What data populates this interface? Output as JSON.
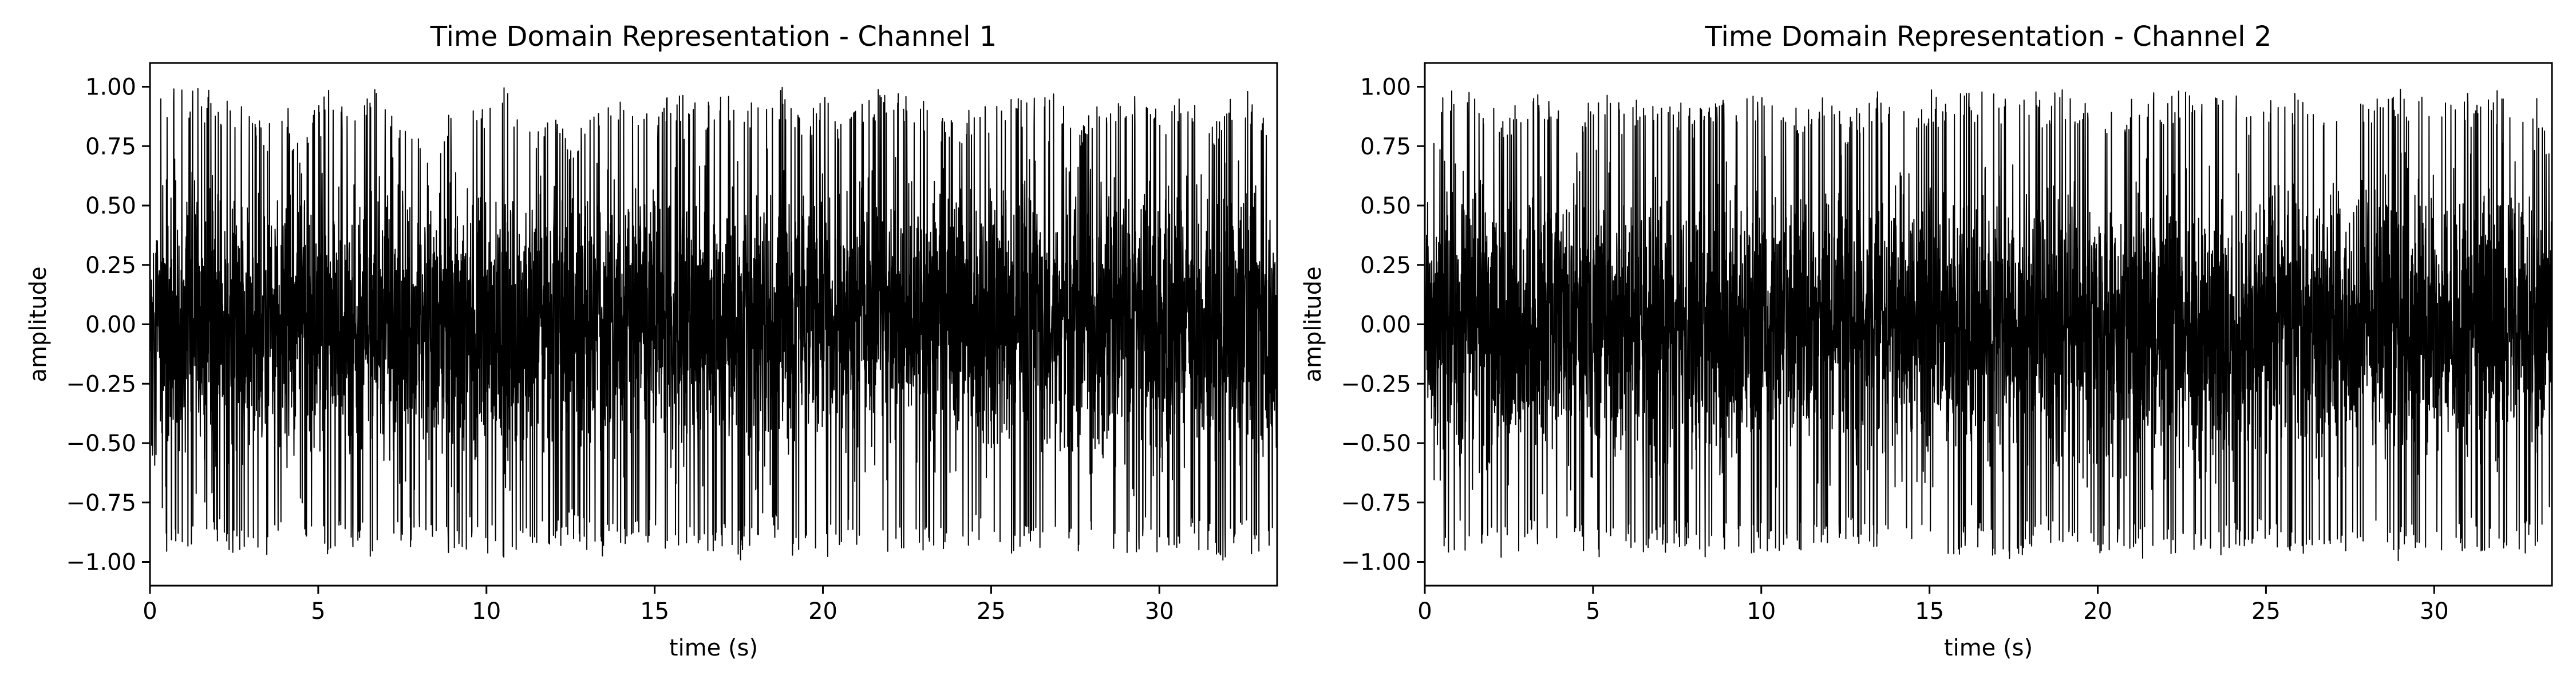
{
  "chart_data": [
    {
      "type": "line",
      "title": "Time Domain Representation - Channel 1",
      "xlabel": "time (s)",
      "ylabel": "amplitude",
      "xlim": [
        0,
        33.5
      ],
      "ylim": [
        -1.1,
        1.1
      ],
      "xticks": [
        0,
        5,
        10,
        15,
        20,
        25,
        30
      ],
      "xtick_labels": [
        "0",
        "5",
        "10",
        "15",
        "20",
        "25",
        "30"
      ],
      "yticks": [
        -1.0,
        -0.75,
        -0.5,
        -0.25,
        0.0,
        0.25,
        0.5,
        0.75,
        1.0
      ],
      "ytick_labels": [
        "−1.00",
        "−0.75",
        "−0.50",
        "−0.25",
        "0.00",
        "0.25",
        "0.50",
        "0.75",
        "1.00"
      ],
      "grid": false,
      "color": "#000000",
      "series": [
        {
          "x": [
            0,
            0.5,
            1,
            1.5,
            2,
            2.5,
            3,
            3.5,
            4,
            4.5,
            5,
            5.5,
            6,
            6.5,
            7,
            7.5,
            8,
            8.5,
            9,
            9.5,
            10,
            10.5,
            11,
            11.5,
            12,
            12.5,
            13,
            13.5,
            14,
            14.5,
            15,
            15.5,
            16,
            16.5,
            17,
            17.5,
            18,
            18.5,
            19,
            19.5,
            20,
            20.5,
            21,
            21.5,
            22,
            22.5,
            23,
            23.5,
            24,
            24.5,
            25,
            25.5,
            26,
            26.5,
            27,
            27.5,
            28,
            28.5,
            29,
            29.5,
            30,
            30.5,
            31,
            31.5,
            32,
            32.5,
            33,
            33.5
          ],
          "envelope_max": [
            0.88,
            1.0,
            1.0,
            1.0,
            0.97,
            0.95,
            0.9,
            0.85,
            0.98,
            0.7,
            1.0,
            0.99,
            0.9,
            1.0,
            0.98,
            0.9,
            0.85,
            0.7,
            1.0,
            1.0,
            0.95,
            1.0,
            0.9,
            0.85,
            0.95,
            0.8,
            0.9,
            0.98,
            1.0,
            0.95,
            0.9,
            0.98,
            1.0,
            0.95,
            1.0,
            0.9,
            0.95,
            1.0,
            1.0,
            0.9,
            0.98,
            0.85,
            0.9,
            1.0,
            0.98,
            1.0,
            0.95,
            0.9,
            0.85,
            0.95,
            0.9,
            1.0,
            0.95,
            0.98,
            1.0,
            0.85,
            0.9,
            0.98,
            1.0,
            0.95,
            0.9,
            1.0,
            0.97,
            0.85,
            0.95,
            1.0,
            0.92,
            0.65
          ],
          "envelope_min": [
            -0.5,
            -1.0,
            -0.98,
            -0.9,
            -0.95,
            -1.0,
            -0.95,
            -0.98,
            -0.9,
            -0.85,
            -1.0,
            -0.97,
            -0.95,
            -0.98,
            -1.0,
            -0.92,
            -0.96,
            -1.0,
            -0.97,
            -0.95,
            -0.98,
            -1.0,
            -0.95,
            -0.96,
            -0.98,
            -0.9,
            -0.95,
            -1.0,
            -0.93,
            -0.96,
            -0.9,
            -0.97,
            -1.0,
            -0.95,
            -0.98,
            -1.0,
            -0.95,
            -0.9,
            -0.97,
            -0.98,
            -1.0,
            -0.95,
            -0.96,
            -1.0,
            -0.98,
            -0.95,
            -0.97,
            -1.0,
            -0.95,
            -0.92,
            -0.96,
            -1.0,
            -0.98,
            -0.95,
            -1.0,
            -0.97,
            -0.9,
            -0.98,
            -1.0,
            -0.95,
            -0.97,
            -1.0,
            -0.95,
            -0.98,
            -1.0,
            -0.96,
            -0.98,
            -1.0
          ]
        }
      ]
    },
    {
      "type": "line",
      "title": "Time Domain Representation - Channel 2",
      "xlabel": "time (s)",
      "ylabel": "amplitude",
      "xlim": [
        0,
        33.5
      ],
      "ylim": [
        -1.1,
        1.1
      ],
      "xticks": [
        0,
        5,
        10,
        15,
        20,
        25,
        30
      ],
      "xtick_labels": [
        "0",
        "5",
        "10",
        "15",
        "20",
        "25",
        "30"
      ],
      "yticks": [
        -1.0,
        -0.75,
        -0.5,
        -0.25,
        0.0,
        0.25,
        0.5,
        0.75,
        1.0
      ],
      "ytick_labels": [
        "−1.00",
        "−0.75",
        "−0.50",
        "−0.25",
        "0.00",
        "0.25",
        "0.50",
        "0.75",
        "1.00"
      ],
      "grid": false,
      "color": "#000000",
      "series": [
        {
          "x": [
            0,
            0.5,
            1,
            1.5,
            2,
            2.5,
            3,
            3.5,
            4,
            4.5,
            5,
            5.5,
            6,
            6.5,
            7,
            7.5,
            8,
            8.5,
            9,
            9.5,
            10,
            10.5,
            11,
            11.5,
            12,
            12.5,
            13,
            13.5,
            14,
            14.5,
            15,
            15.5,
            16,
            16.5,
            17,
            17.5,
            18,
            18.5,
            19,
            19.5,
            20,
            20.5,
            21,
            21.5,
            22,
            22.5,
            23,
            23.5,
            24,
            24.5,
            25,
            25.5,
            26,
            26.5,
            27,
            27.5,
            28,
            28.5,
            29,
            29.5,
            30,
            30.5,
            31,
            31.5,
            32,
            32.5,
            33,
            33.5
          ],
          "envelope_max": [
            0.5,
            1.0,
            0.98,
            1.0,
            0.95,
            0.9,
            0.98,
            1.0,
            0.95,
            0.8,
            1.0,
            0.97,
            0.9,
            1.0,
            0.98,
            0.95,
            0.9,
            1.0,
            0.98,
            0.95,
            0.98,
            1.0,
            0.95,
            0.9,
            1.0,
            0.85,
            0.95,
            1.0,
            0.98,
            0.9,
            1.0,
            0.95,
            0.98,
            1.0,
            0.98,
            0.95,
            1.0,
            0.96,
            1.0,
            0.95,
            0.98,
            0.9,
            0.95,
            1.0,
            0.98,
            1.0,
            0.95,
            0.98,
            1.0,
            0.9,
            0.95,
            1.0,
            0.98,
            0.9,
            0.95,
            1.0,
            0.98,
            0.95,
            1.0,
            0.98,
            0.95,
            1.0,
            0.98,
            0.95,
            1.0,
            0.98,
            1.0,
            0.7
          ],
          "envelope_min": [
            -0.3,
            -1.0,
            -0.95,
            -0.98,
            -0.96,
            -1.0,
            -0.95,
            -0.98,
            -0.9,
            -0.95,
            -1.0,
            -0.97,
            -0.95,
            -0.98,
            -1.0,
            -0.93,
            -0.97,
            -1.0,
            -0.96,
            -0.95,
            -0.98,
            -1.0,
            -0.95,
            -0.97,
            -0.98,
            -0.92,
            -0.95,
            -1.0,
            -0.94,
            -0.96,
            -0.9,
            -0.97,
            -1.0,
            -0.95,
            -0.98,
            -1.0,
            -0.96,
            -0.92,
            -0.97,
            -0.98,
            -1.0,
            -0.95,
            -0.96,
            -1.0,
            -0.98,
            -0.95,
            -0.97,
            -1.0,
            -0.95,
            -0.93,
            -0.96,
            -1.0,
            -0.98,
            -0.95,
            -1.0,
            -0.97,
            -0.92,
            -0.98,
            -1.0,
            -0.95,
            -0.97,
            -1.0,
            -0.95,
            -0.98,
            -1.0,
            -0.96,
            -0.98,
            -0.85
          ]
        }
      ]
    }
  ]
}
